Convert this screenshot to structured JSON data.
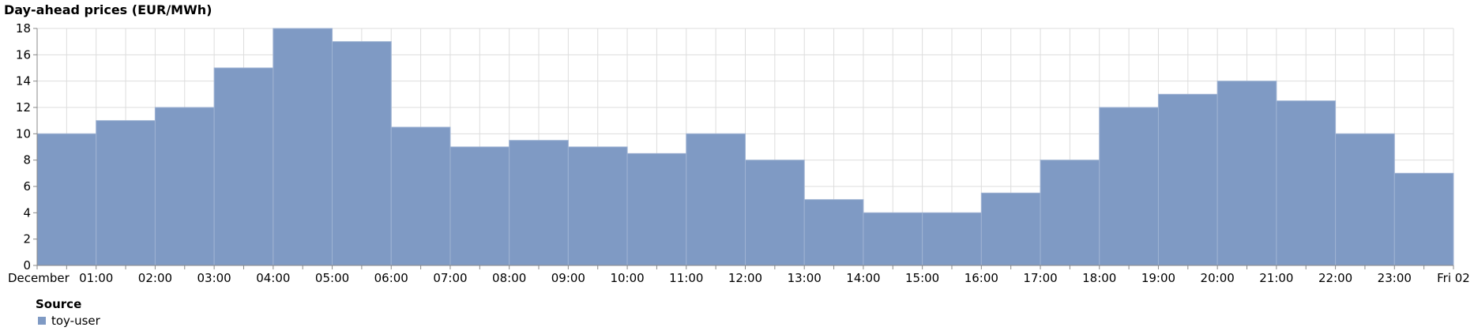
{
  "chart_data": {
    "type": "area",
    "step": true,
    "title": "Day-ahead prices (EUR/MWh)",
    "xlabel": "",
    "ylabel": "",
    "x_tick_labels": [
      "December",
      "01:00",
      "02:00",
      "03:00",
      "04:00",
      "05:00",
      "06:00",
      "07:00",
      "08:00",
      "09:00",
      "10:00",
      "11:00",
      "12:00",
      "13:00",
      "14:00",
      "15:00",
      "16:00",
      "17:00",
      "18:00",
      "19:00",
      "20:00",
      "21:00",
      "22:00",
      "23:00",
      "Fri 02"
    ],
    "y_ticks": [
      0,
      2,
      4,
      6,
      8,
      10,
      12,
      14,
      16,
      18
    ],
    "ylim": [
      0,
      18
    ],
    "grid": true,
    "legend_position": "bottom-left",
    "series": [
      {
        "name": "toy-user",
        "color": "#7f9ac4",
        "x": [
          "00:00",
          "01:00",
          "02:00",
          "03:00",
          "04:00",
          "05:00",
          "06:00",
          "07:00",
          "08:00",
          "09:00",
          "10:00",
          "11:00",
          "12:00",
          "13:00",
          "14:00",
          "15:00",
          "16:00",
          "17:00",
          "18:00",
          "19:00",
          "20:00",
          "21:00",
          "22:00",
          "23:00"
        ],
        "values": [
          10,
          11,
          12,
          15,
          18,
          17,
          10.5,
          9,
          9.5,
          9,
          8.5,
          10,
          8,
          5,
          4,
          4,
          5.5,
          8,
          12,
          13,
          14,
          12.5,
          10,
          7
        ]
      }
    ]
  },
  "legend": {
    "title": "Source",
    "items": [
      {
        "label": "toy-user",
        "color": "#7f9ac4"
      }
    ]
  }
}
